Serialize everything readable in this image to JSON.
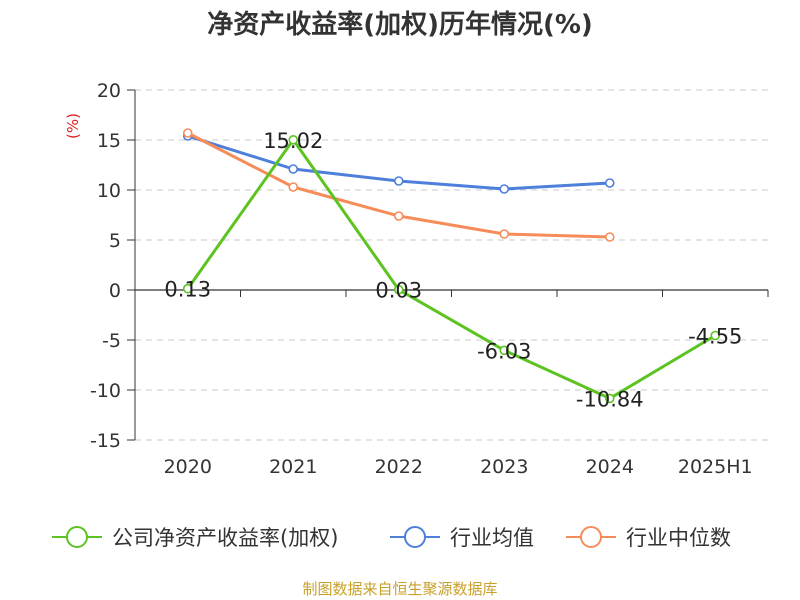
{
  "chart_data": {
    "type": "line",
    "title": "净资产收益率(加权)历年情况(%)",
    "ylabel": "(%)",
    "categories": [
      "2020",
      "2021",
      "2022",
      "2023",
      "2024",
      "2025H1"
    ],
    "ylim": [
      -15,
      20
    ],
    "yticks": [
      20,
      15,
      10,
      5,
      0,
      -5,
      -10,
      -15
    ],
    "grid": true,
    "legend_position": "bottom",
    "series": [
      {
        "name": "公司净资产收益率(加权)",
        "color": "#5cc321",
        "values": [
          0.13,
          15.02,
          0.03,
          -6.03,
          -10.84,
          -4.55
        ],
        "labels": [
          "0.13",
          "15.02",
          "0.03",
          "-6.03",
          "-10.84",
          "-4.55"
        ]
      },
      {
        "name": "行业均值",
        "color": "#4d7fdb",
        "values": [
          15.4,
          12.1,
          10.9,
          10.1,
          10.7,
          null
        ]
      },
      {
        "name": "行业中位数",
        "color": "#f58c5a",
        "values": [
          15.7,
          10.3,
          7.4,
          5.6,
          5.3,
          null
        ]
      }
    ]
  },
  "source": "制图数据来自恒生聚源数据库"
}
